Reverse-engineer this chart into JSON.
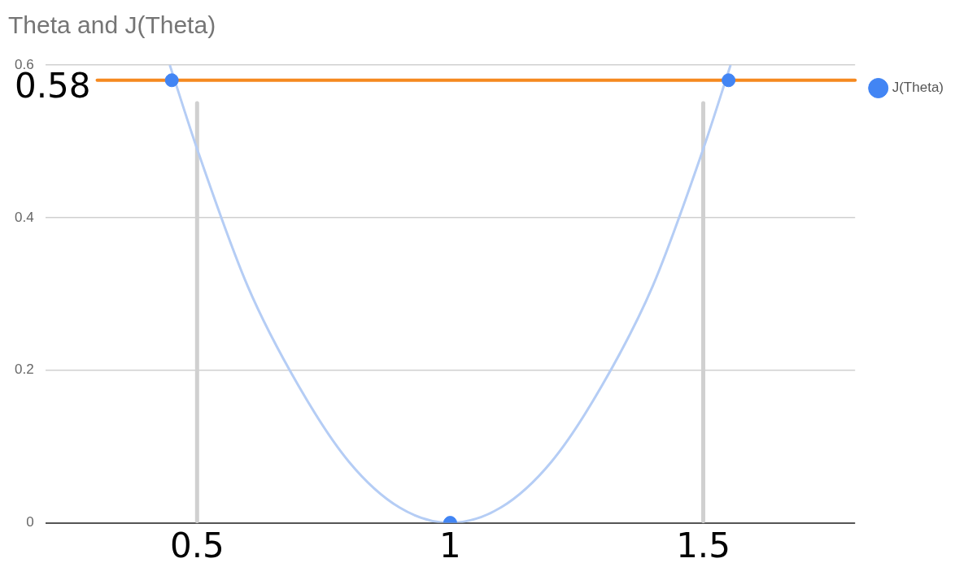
{
  "chart_data": {
    "type": "scatter",
    "title": "Theta and J(Theta)",
    "xlim": [
      0.2,
      1.8
    ],
    "xticks": [
      0.5,
      1,
      1.5
    ],
    "ylim": [
      0,
      0.6
    ],
    "yticks": [
      0,
      0.2,
      0.4,
      0.6
    ],
    "series": [
      {
        "name": "J(Theta)",
        "color": "#4285f4",
        "x": [
          0.45,
          1,
          1.55
        ],
        "values": [
          0.58,
          0,
          0.58
        ]
      },
      {
        "type": "line",
        "color": "#b5cdf5",
        "marker": "none",
        "x": [
          0.446,
          0.5,
          0.6,
          0.7,
          0.8,
          0.9,
          1,
          1.1,
          1.2,
          1.3,
          1.4,
          1.5,
          1.554
        ],
        "values": [
          0.6,
          0.49,
          0.31,
          0.18,
          0.08,
          0.02,
          0,
          0.02,
          0.08,
          0.18,
          0.31,
          0.49,
          0.6
        ]
      }
    ],
    "ref_lines": [
      {
        "axis": "y",
        "value": 0.58,
        "label": "0.58",
        "color": "#f5891f"
      },
      {
        "axis": "x",
        "value": 0.5,
        "color": "#d0d0d0"
      },
      {
        "axis": "x",
        "value": 1.5,
        "color": "#d0d0d0"
      }
    ],
    "grid": "y",
    "legend": "top right",
    "marker": "circle"
  }
}
